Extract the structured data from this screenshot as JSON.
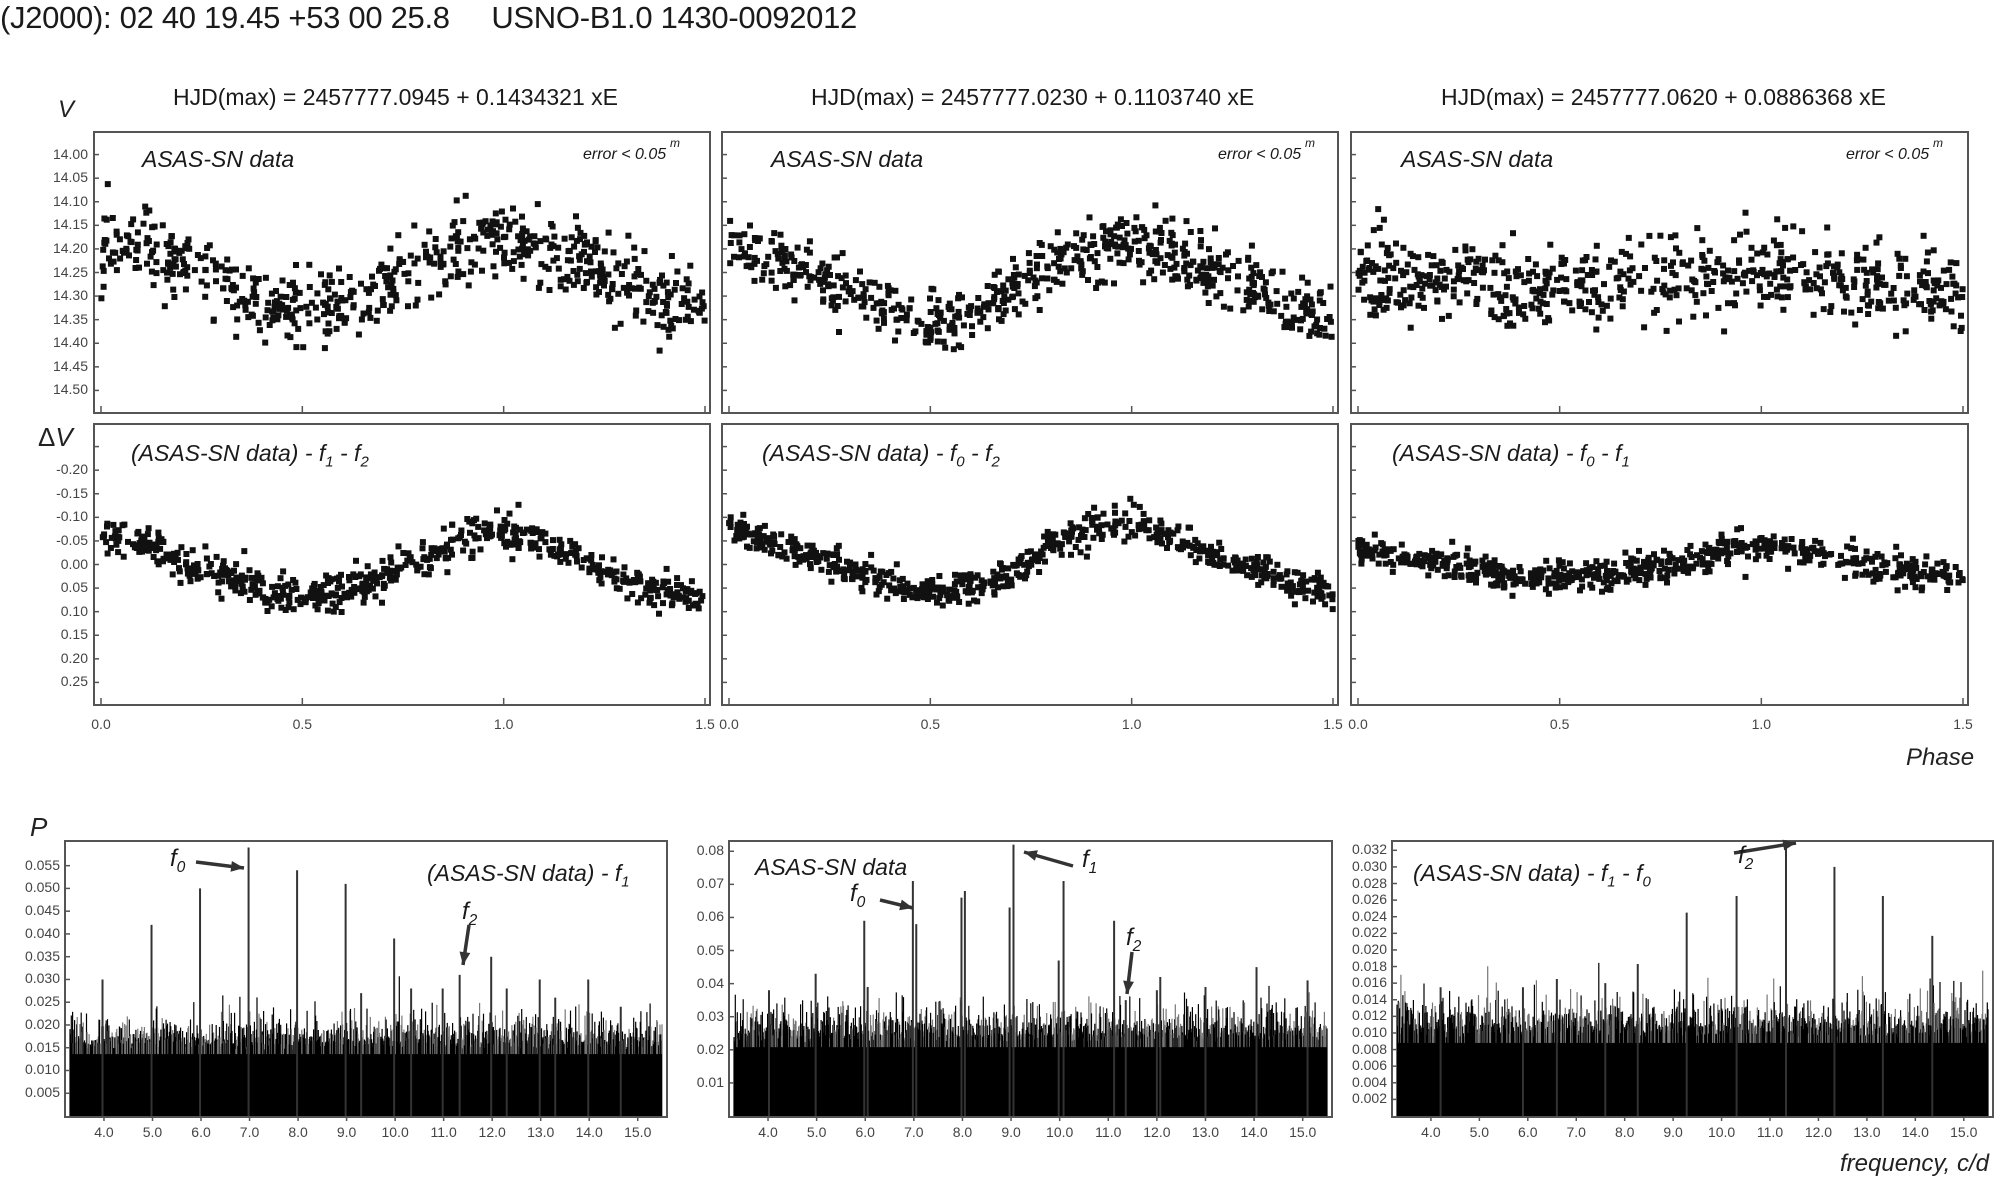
{
  "header": {
    "coords": "(J2000): 02 40 19.45 +53 00 25.8",
    "catalog": "USNO-B1.0 1430-0092012"
  },
  "axis_titles": {
    "v": "V",
    "dv": "ΔV",
    "phase": "Phase",
    "p": "P",
    "frequency": "frequency, c/d"
  },
  "columns": [
    {
      "ephemeris": "HJD(max) = 2457777.0945 + 0.1434321 xE",
      "top_label": "ASAS-SN data",
      "error_label": "error < 0.05",
      "error_sup": "m",
      "bottom_label_main": "(ASAS-SN data) - f",
      "bottom_label_subs": [
        "1",
        "2"
      ]
    },
    {
      "ephemeris": "HJD(max) = 2457777.0230 + 0.1103740 xE",
      "top_label": "ASAS-SN data",
      "error_label": "error < 0.05",
      "error_sup": "m",
      "bottom_label_main": "(ASAS-SN data) - f",
      "bottom_label_subs": [
        "0",
        "2"
      ]
    },
    {
      "ephemeris": "HJD(max) = 2457777.0620 + 0.0886368 xE",
      "top_label": "ASAS-SN data",
      "error_label": "error < 0.05",
      "error_sup": "m",
      "bottom_label_main": "(ASAS-SN data) - f",
      "bottom_label_subs": [
        "0",
        "1"
      ]
    }
  ],
  "periodograms": [
    {
      "label": "(ASAS-SN data) - f",
      "label_subs": [
        "1"
      ],
      "annotations": [
        "f0",
        "f2"
      ]
    },
    {
      "label": "ASAS-SN data",
      "label_subs": [],
      "annotations": [
        "f0",
        "f1",
        "f2"
      ]
    },
    {
      "label": "(ASAS-SN data) - f",
      "label_subs": [
        "1",
        "0"
      ],
      "annotations": [
        "f2"
      ]
    }
  ],
  "chart_data": [
    {
      "type": "scatter",
      "title": "HJD(max) = 2457777.0945 + 0.1434321 xE",
      "panel": "ASAS-SN data (V vs phase), P=0.1434321 d",
      "xlabel": "Phase",
      "ylabel": "V",
      "xlim": [
        0.0,
        1.5
      ],
      "ylim": [
        14.55,
        13.95
      ],
      "x_ticks": [
        "0.0",
        "0.5",
        "1.0",
        "1.5"
      ],
      "y_ticks": [
        "14.00",
        "14.05",
        "14.10",
        "14.15",
        "14.20",
        "14.25",
        "14.30",
        "14.35",
        "14.40",
        "14.45",
        "14.50"
      ],
      "annotations": [
        "ASAS-SN data",
        "error < 0.05 m"
      ],
      "trend": {
        "x": [
          0.0,
          0.1,
          0.2,
          0.3,
          0.4,
          0.5,
          0.6,
          0.7,
          0.8,
          0.9,
          1.0,
          1.1,
          1.2,
          1.3,
          1.4,
          1.5
        ],
        "y": [
          14.2,
          14.18,
          14.22,
          14.27,
          14.31,
          14.33,
          14.31,
          14.28,
          14.24,
          14.2,
          14.18,
          14.2,
          14.23,
          14.27,
          14.31,
          14.33
        ]
      },
      "scatter_sigma": 0.07
    },
    {
      "type": "scatter",
      "title": "HJD(max) = 2457777.0230 + 0.1103740 xE",
      "panel": "ASAS-SN data (V vs phase), P=0.1103740 d",
      "xlabel": "Phase",
      "ylabel": "V",
      "xlim": [
        0.0,
        1.5
      ],
      "ylim": [
        14.55,
        13.95
      ],
      "x_ticks": [
        "0.0",
        "0.5",
        "1.0",
        "1.5"
      ],
      "annotations": [
        "ASAS-SN data",
        "error < 0.05 m"
      ],
      "trend": {
        "x": [
          0.0,
          0.1,
          0.2,
          0.3,
          0.4,
          0.5,
          0.6,
          0.7,
          0.8,
          0.9,
          1.0,
          1.1,
          1.2,
          1.3,
          1.4,
          1.5
        ],
        "y": [
          14.2,
          14.22,
          14.25,
          14.28,
          14.33,
          14.35,
          14.33,
          14.29,
          14.23,
          14.2,
          14.19,
          14.21,
          14.24,
          14.28,
          14.33,
          14.35
        ]
      },
      "scatter_sigma": 0.06
    },
    {
      "type": "scatter",
      "title": "HJD(max) = 2457777.0620 + 0.0886368 xE",
      "panel": "ASAS-SN data (V vs phase), P=0.0886368 d",
      "xlabel": "Phase",
      "ylabel": "V",
      "xlim": [
        0.0,
        1.5
      ],
      "ylim": [
        14.55,
        13.95
      ],
      "x_ticks": [
        "0.0",
        "0.5",
        "1.0",
        "1.5"
      ],
      "annotations": [
        "ASAS-SN data",
        "error < 0.05 m"
      ],
      "trend": {
        "x": [
          0.0,
          0.5,
          1.0,
          1.5
        ],
        "y": [
          14.26,
          14.28,
          14.25,
          14.28
        ]
      },
      "scatter_sigma": 0.08
    },
    {
      "type": "scatter",
      "panel": "(ASAS-SN data) - f1 - f2 (ΔV vs phase)",
      "xlabel": "Phase",
      "ylabel": "ΔV",
      "xlim": [
        0.0,
        1.5
      ],
      "ylim": [
        0.3,
        -0.3
      ],
      "y_ticks": [
        "-0.20",
        "-0.15",
        "-0.10",
        "-0.05",
        "0.00",
        "0.05",
        "0.10",
        "0.15",
        "0.20",
        "0.25"
      ],
      "x_ticks": [
        "0.0",
        "0.5",
        "1.0",
        "1.5"
      ],
      "trend": {
        "x": [
          0.0,
          0.1,
          0.2,
          0.3,
          0.4,
          0.5,
          0.6,
          0.7,
          0.8,
          0.9,
          1.0,
          1.1,
          1.2,
          1.3,
          1.4,
          1.5
        ],
        "y": [
          -0.05,
          -0.05,
          0.0,
          0.02,
          0.05,
          0.07,
          0.06,
          0.03,
          -0.02,
          -0.06,
          -0.07,
          -0.05,
          0.0,
          0.03,
          0.06,
          0.07
        ]
      },
      "scatter_sigma": 0.035
    },
    {
      "type": "scatter",
      "panel": "(ASAS-SN data) - f0 - f2 (ΔV vs phase)",
      "xlabel": "Phase",
      "ylabel": "ΔV",
      "xlim": [
        0.0,
        1.5
      ],
      "ylim": [
        0.3,
        -0.3
      ],
      "x_ticks": [
        "0.0",
        "0.5",
        "1.0",
        "1.5"
      ],
      "trend": {
        "x": [
          0.0,
          0.1,
          0.2,
          0.3,
          0.4,
          0.5,
          0.6,
          0.7,
          0.8,
          0.9,
          1.0,
          1.1,
          1.2,
          1.3,
          1.4,
          1.5
        ],
        "y": [
          -0.08,
          -0.05,
          -0.02,
          0.01,
          0.04,
          0.06,
          0.05,
          0.02,
          -0.04,
          -0.08,
          -0.09,
          -0.06,
          -0.02,
          0.01,
          0.04,
          0.06
        ]
      },
      "scatter_sigma": 0.03
    },
    {
      "type": "scatter",
      "panel": "(ASAS-SN data) - f0 - f1 (ΔV vs phase)",
      "xlabel": "Phase",
      "ylabel": "ΔV",
      "xlim": [
        0.0,
        1.5
      ],
      "ylim": [
        0.3,
        -0.3
      ],
      "x_ticks": [
        "0.0",
        "0.5",
        "1.0",
        "1.5"
      ],
      "trend": {
        "x": [
          0.0,
          0.1,
          0.2,
          0.3,
          0.4,
          0.5,
          0.6,
          0.7,
          0.8,
          0.9,
          1.0,
          1.1,
          1.2,
          1.3,
          1.4,
          1.5
        ],
        "y": [
          -0.03,
          -0.02,
          0.0,
          0.01,
          0.03,
          0.02,
          0.02,
          0.01,
          0.0,
          -0.03,
          -0.04,
          -0.03,
          -0.01,
          0.01,
          0.02,
          0.03
        ]
      },
      "scatter_sigma": 0.03
    },
    {
      "type": "bar",
      "panel": "Periodogram: (ASAS-SN data) - f1",
      "xlabel": "frequency, c/d",
      "ylabel": "P",
      "xlim": [
        3.3,
        15.5
      ],
      "ylim": [
        0.0,
        0.06
      ],
      "x_ticks": [
        "4.0",
        "5.0",
        "6.0",
        "7.0",
        "8.0",
        "9.0",
        "10.0",
        "11.0",
        "12.0",
        "13.0",
        "14.0",
        "15.0"
      ],
      "y_ticks": [
        "0.005",
        "0.010",
        "0.015",
        "0.020",
        "0.025",
        "0.030",
        "0.035",
        "0.040",
        "0.045",
        "0.050",
        "0.055"
      ],
      "noise_level": 0.017,
      "peaks": [
        {
          "f": 3.97,
          "p": 0.03
        },
        {
          "f": 4.98,
          "p": 0.042
        },
        {
          "f": 5.98,
          "p": 0.05
        },
        {
          "f": 6.98,
          "p": 0.059,
          "label": "f0"
        },
        {
          "f": 7.98,
          "p": 0.054
        },
        {
          "f": 8.98,
          "p": 0.051
        },
        {
          "f": 9.3,
          "p": 0.027
        },
        {
          "f": 9.98,
          "p": 0.039
        },
        {
          "f": 10.33,
          "p": 0.028
        },
        {
          "f": 10.98,
          "p": 0.028
        },
        {
          "f": 11.33,
          "p": 0.031,
          "label": "f2"
        },
        {
          "f": 11.98,
          "p": 0.035
        },
        {
          "f": 12.3,
          "p": 0.028
        },
        {
          "f": 12.98,
          "p": 0.03
        },
        {
          "f": 13.3,
          "p": 0.026
        },
        {
          "f": 13.98,
          "p": 0.03
        },
        {
          "f": 14.65,
          "p": 0.024
        }
      ]
    },
    {
      "type": "bar",
      "panel": "Periodogram: ASAS-SN data",
      "xlabel": "frequency, c/d",
      "ylabel": "P",
      "xlim": [
        3.3,
        15.5
      ],
      "ylim": [
        0.0,
        0.083
      ],
      "x_ticks": [
        "4.0",
        "5.0",
        "6.0",
        "7.0",
        "8.0",
        "9.0",
        "10.0",
        "11.0",
        "12.0",
        "13.0",
        "14.0",
        "15.0"
      ],
      "y_ticks": [
        "0.01",
        "0.02",
        "0.03",
        "0.04",
        "0.05",
        "0.06",
        "0.07",
        "0.08"
      ],
      "noise_level": 0.026,
      "peaks": [
        {
          "f": 4.02,
          "p": 0.038
        },
        {
          "f": 4.98,
          "p": 0.043
        },
        {
          "f": 5.98,
          "p": 0.059
        },
        {
          "f": 6.05,
          "p": 0.039
        },
        {
          "f": 6.98,
          "p": 0.071,
          "label": "f0"
        },
        {
          "f": 7.05,
          "p": 0.058
        },
        {
          "f": 7.98,
          "p": 0.066
        },
        {
          "f": 8.05,
          "p": 0.068
        },
        {
          "f": 8.97,
          "p": 0.063
        },
        {
          "f": 9.05,
          "p": 0.082,
          "label": "f1"
        },
        {
          "f": 9.98,
          "p": 0.047
        },
        {
          "f": 10.08,
          "p": 0.071
        },
        {
          "f": 11.12,
          "p": 0.059
        },
        {
          "f": 11.36,
          "p": 0.035,
          "label": "f2"
        },
        {
          "f": 12.0,
          "p": 0.038
        },
        {
          "f": 12.07,
          "p": 0.042
        },
        {
          "f": 13.0,
          "p": 0.039
        },
        {
          "f": 14.05,
          "p": 0.045
        },
        {
          "f": 15.1,
          "p": 0.041
        }
      ]
    },
    {
      "type": "bar",
      "panel": "Periodogram: (ASAS-SN data) - f1 - f0",
      "xlabel": "frequency, c/d",
      "ylabel": "P",
      "xlim": [
        3.3,
        15.5
      ],
      "ylim": [
        0.0,
        0.033
      ],
      "x_ticks": [
        "4.0",
        "5.0",
        "6.0",
        "7.0",
        "8.0",
        "9.0",
        "10.0",
        "11.0",
        "12.0",
        "13.0",
        "14.0",
        "15.0"
      ],
      "y_ticks": [
        "0.002",
        "0.004",
        "0.006",
        "0.008",
        "0.010",
        "0.012",
        "0.014",
        "0.016",
        "0.018",
        "0.020",
        "0.022",
        "0.024",
        "0.026",
        "0.028",
        "0.030",
        "0.032"
      ],
      "noise_level": 0.011,
      "peaks": [
        {
          "f": 4.2,
          "p": 0.0155
        },
        {
          "f": 5.9,
          "p": 0.0155
        },
        {
          "f": 6.6,
          "p": 0.0165
        },
        {
          "f": 7.6,
          "p": 0.016
        },
        {
          "f": 8.27,
          "p": 0.0183
        },
        {
          "f": 9.28,
          "p": 0.0245
        },
        {
          "f": 10.31,
          "p": 0.0265
        },
        {
          "f": 11.33,
          "p": 0.0325,
          "label": "f2"
        },
        {
          "f": 12.33,
          "p": 0.03
        },
        {
          "f": 13.33,
          "p": 0.0265
        },
        {
          "f": 14.35,
          "p": 0.0217
        }
      ]
    }
  ]
}
